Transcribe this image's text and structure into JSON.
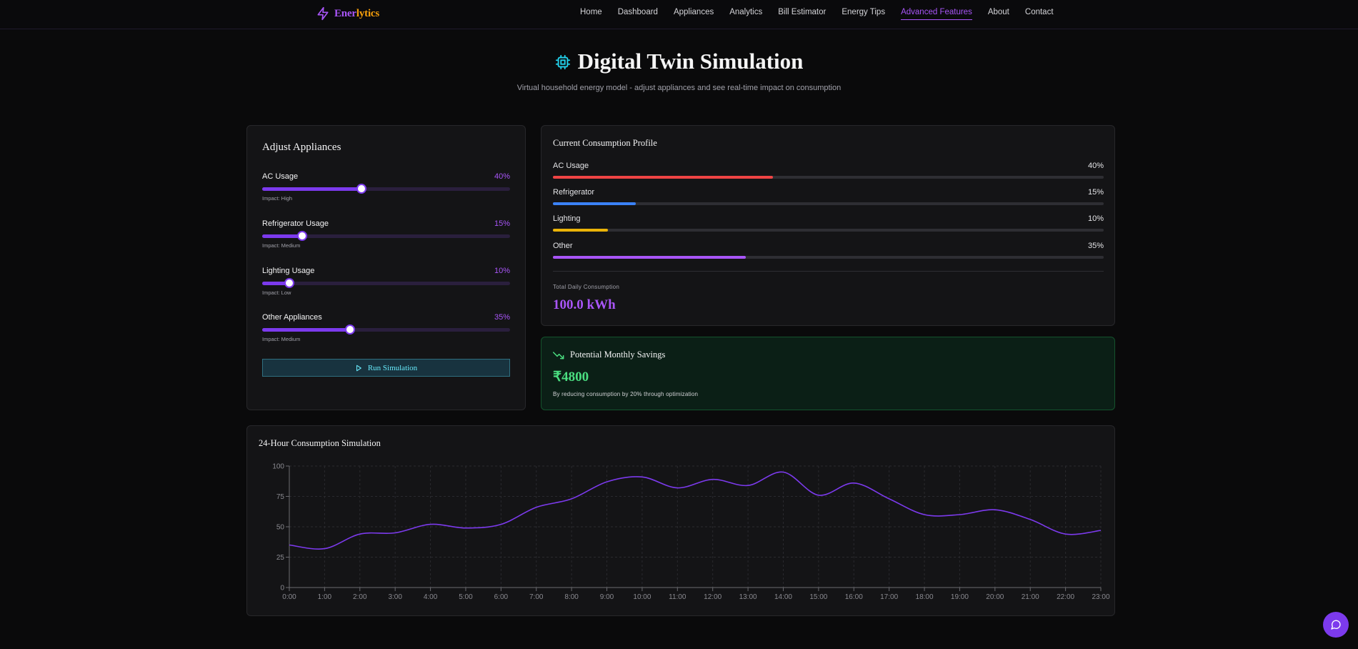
{
  "brand": {
    "name_a": "Ener",
    "name_b": "lytics"
  },
  "nav": {
    "links": [
      "Home",
      "Dashboard",
      "Appliances",
      "Analytics",
      "Bill Estimator",
      "Energy Tips",
      "Advanced Features",
      "About",
      "Contact"
    ],
    "active": "Advanced Features"
  },
  "header": {
    "title": "Digital Twin Simulation",
    "subtitle": "Virtual household energy model - adjust appliances and see real-time impact on consumption"
  },
  "adjust": {
    "title": "Adjust Appliances",
    "sliders": [
      {
        "label": "AC Usage",
        "value_text": "40%",
        "value": 40,
        "impact": "Impact: High"
      },
      {
        "label": "Refrigerator Usage",
        "value_text": "15%",
        "value": 15,
        "impact": "Impact: Medium"
      },
      {
        "label": "Lighting Usage",
        "value_text": "10%",
        "value": 10,
        "impact": "Impact: Low"
      },
      {
        "label": "Other Appliances",
        "value_text": "35%",
        "value": 35,
        "impact": "Impact: Medium"
      }
    ],
    "run_label": "Run Simulation"
  },
  "profile": {
    "title": "Current Consumption Profile",
    "bars": [
      {
        "label": "AC Usage",
        "value_text": "40%",
        "value": 40,
        "color": "#ef4444"
      },
      {
        "label": "Refrigerator",
        "value_text": "15%",
        "value": 15,
        "color": "#3b82f6"
      },
      {
        "label": "Lighting",
        "value_text": "10%",
        "value": 10,
        "color": "#eab308"
      },
      {
        "label": "Other",
        "value_text": "35%",
        "value": 35,
        "color": "#a855f7"
      }
    ],
    "total_label": "Total Daily Consumption",
    "total_value": "100.0 kWh"
  },
  "savings": {
    "title": "Potential Monthly Savings",
    "value": "₹4800",
    "note": "By reducing consumption by 20% through optimization"
  },
  "chart_data": {
    "type": "line",
    "title": "24-Hour Consumption Simulation",
    "x": [
      "0:00",
      "1:00",
      "2:00",
      "3:00",
      "4:00",
      "5:00",
      "6:00",
      "7:00",
      "8:00",
      "9:00",
      "10:00",
      "11:00",
      "12:00",
      "13:00",
      "14:00",
      "15:00",
      "16:00",
      "17:00",
      "18:00",
      "19:00",
      "20:00",
      "21:00",
      "22:00",
      "23:00"
    ],
    "series": [
      {
        "name": "Consumption",
        "color": "#7c3aed",
        "values": [
          35,
          32,
          44,
          45,
          52,
          49,
          52,
          66,
          73,
          87,
          91,
          82,
          89,
          84,
          95,
          76,
          86,
          73,
          60,
          60,
          64,
          56,
          44,
          47
        ]
      }
    ],
    "ylim": [
      0,
      100
    ],
    "yticks": [
      0,
      25,
      50,
      75,
      100
    ],
    "grid": true
  }
}
